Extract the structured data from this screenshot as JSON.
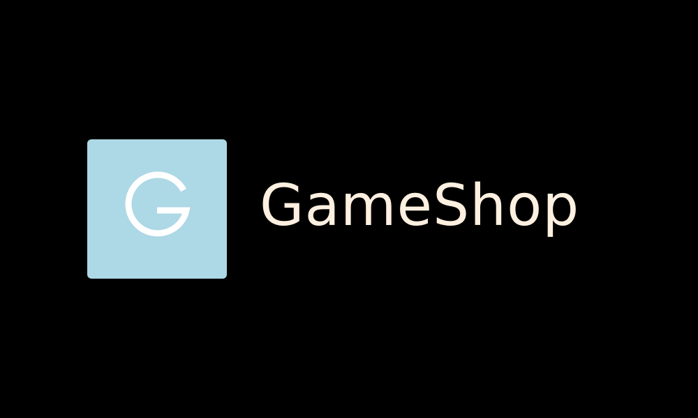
{
  "logo": {
    "mark_letter": "G",
    "brand_name": "GameShop",
    "mark_background": "#add8e6",
    "mark_letter_color": "#ffffff",
    "brand_text_color": "#fdf0e0",
    "page_background": "#000000"
  }
}
